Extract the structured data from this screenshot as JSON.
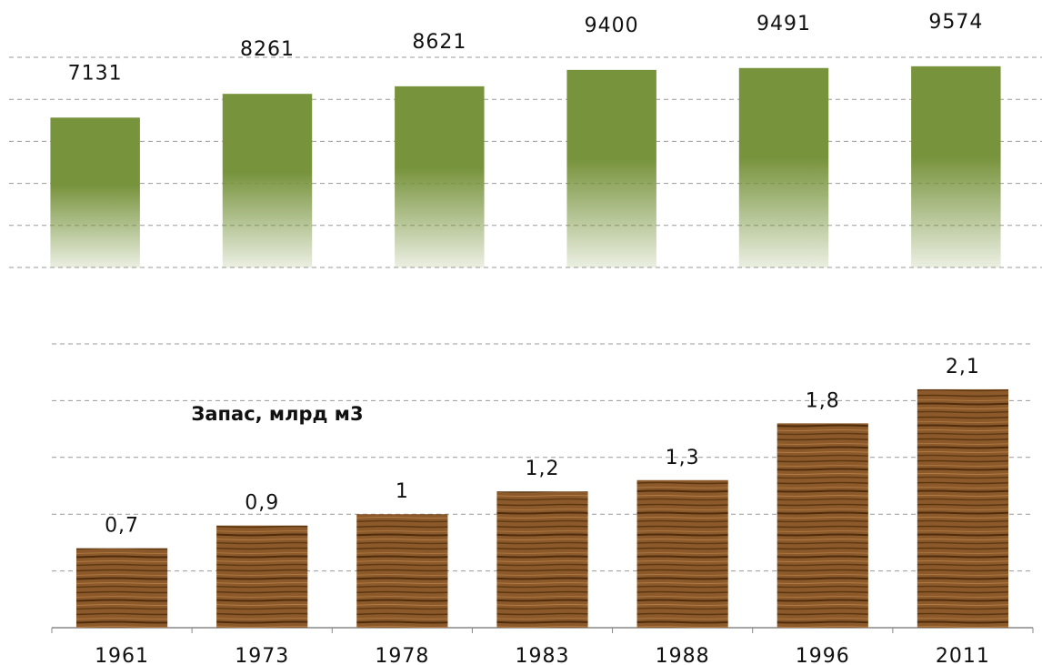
{
  "chart_data": [
    {
      "type": "bar",
      "values": [
        7131,
        8261,
        8621,
        9400,
        9491,
        9574
      ],
      "color": "#77933c",
      "ylim": [
        0,
        10000
      ],
      "yticks": [
        0,
        2000,
        4000,
        6000,
        8000,
        10000
      ],
      "grid": true,
      "tick_labels": false
    },
    {
      "type": "bar",
      "annotation": "Запас, млрд м3",
      "categories": [
        "1961",
        "1973",
        "1978",
        "1983",
        "1988",
        "1996",
        "2011"
      ],
      "values": [
        0.7,
        0.9,
        1,
        1.2,
        1.3,
        1.8,
        2.1
      ],
      "value_labels": [
        "0,7",
        "0,9",
        "1",
        "1,2",
        "1,3",
        "1,8",
        "2,1"
      ],
      "color": "#8c5a2a",
      "ylim": [
        0,
        2.5
      ],
      "yticks": [
        0,
        0.5,
        1,
        1.5,
        2,
        2.5
      ],
      "grid": true,
      "tick_labels": false
    }
  ]
}
